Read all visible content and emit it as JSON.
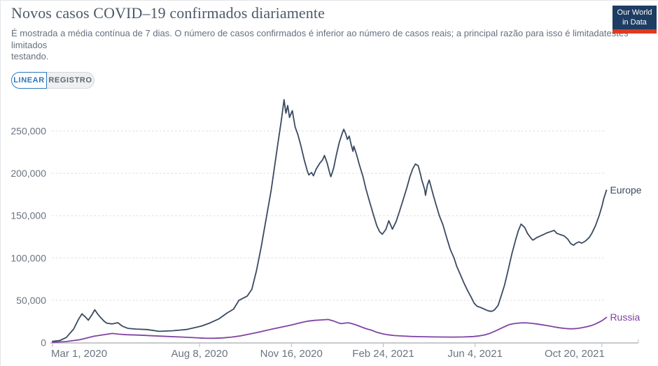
{
  "page": {
    "logo": {
      "line1": "Our World",
      "line2": "in Data"
    },
    "buttons": {
      "linear": "LINEAR",
      "log": "REGISTRO"
    }
  },
  "colors": {
    "accent_blue": "#2d77bd",
    "logo_navy": "#1d3d63",
    "logo_red": "#dc3b22",
    "europe_line": "#394a61",
    "russia_line": "#8143a4",
    "axis_text": "#6b7482",
    "grid": "#dcdee0",
    "axis_line": "#a6a9ad"
  },
  "chart_data": {
    "type": "line",
    "title": "Novos casos COVID–19 confirmados diariamente",
    "subtitle": "É mostrada a média contínua de 7 dias. O número de casos confirmados é inferior ao número de casos reais; a principal razão para isso é limitadatestes\nlimitados\ntestando.",
    "grid": "dashed-horizontal",
    "legend_position": "end-of-line",
    "x_axis": {
      "start_date": "Mar 1, 2020",
      "tick_labels": [
        "Mar 1, 2020",
        "Aug 8, 2020",
        "Nov 16, 2020",
        "Feb 24, 2021",
        "Jun 4, 2021",
        "Oct 20, 2021"
      ],
      "tick_days": [
        0,
        160,
        260,
        360,
        460,
        598
      ],
      "domain_days": [
        0,
        603
      ]
    },
    "y_axis": {
      "ticks": [
        0,
        50000,
        100000,
        150000,
        200000,
        250000
      ],
      "tick_labels": [
        "0",
        "50,000",
        "100,000",
        "150,000",
        "200,000",
        "250,000"
      ],
      "range": [
        0,
        250000
      ]
    },
    "series": [
      {
        "name": "Europe",
        "color": "#394a61",
        "points": [
          [
            0,
            1500
          ],
          [
            8,
            2500
          ],
          [
            15,
            6000
          ],
          [
            23,
            16000
          ],
          [
            28,
            27000
          ],
          [
            32,
            34000
          ],
          [
            36,
            30000
          ],
          [
            39,
            26500
          ],
          [
            43,
            33000
          ],
          [
            46,
            38800
          ],
          [
            49,
            34000
          ],
          [
            52,
            30000
          ],
          [
            56,
            25500
          ],
          [
            59,
            23000
          ],
          [
            65,
            22000
          ],
          [
            71,
            23500
          ],
          [
            76,
            19500
          ],
          [
            82,
            16800
          ],
          [
            91,
            16000
          ],
          [
            103,
            15400
          ],
          [
            116,
            13300
          ],
          [
            131,
            14000
          ],
          [
            146,
            15500
          ],
          [
            162,
            19500
          ],
          [
            171,
            23000
          ],
          [
            181,
            28000
          ],
          [
            190,
            35000
          ],
          [
            197,
            39500
          ],
          [
            203,
            50000
          ],
          [
            212,
            55000
          ],
          [
            217,
            63000
          ],
          [
            222,
            85000
          ],
          [
            227,
            112000
          ],
          [
            232,
            143000
          ],
          [
            238,
            180000
          ],
          [
            245,
            233000
          ],
          [
            249,
            262000
          ],
          [
            252,
            287000
          ],
          [
            254,
            271000
          ],
          [
            256,
            280000
          ],
          [
            258,
            266000
          ],
          [
            261,
            274000
          ],
          [
            264,
            255000
          ],
          [
            267,
            246000
          ],
          [
            270,
            234000
          ],
          [
            274,
            216000
          ],
          [
            277,
            204000
          ],
          [
            279,
            198000
          ],
          [
            282,
            201000
          ],
          [
            284,
            197000
          ],
          [
            287,
            205000
          ],
          [
            291,
            212000
          ],
          [
            294,
            216000
          ],
          [
            296,
            221000
          ],
          [
            299,
            212000
          ],
          [
            302,
            199000
          ],
          [
            303,
            196000
          ],
          [
            306,
            206000
          ],
          [
            309,
            222000
          ],
          [
            312,
            236000
          ],
          [
            315,
            246000
          ],
          [
            317,
            252000
          ],
          [
            319,
            247000
          ],
          [
            321,
            240000
          ],
          [
            323,
            244000
          ],
          [
            325,
            234000
          ],
          [
            327,
            226000
          ],
          [
            328,
            232000
          ],
          [
            331,
            222000
          ],
          [
            334,
            210000
          ],
          [
            338,
            196000
          ],
          [
            341,
            182000
          ],
          [
            345,
            167000
          ],
          [
            349,
            152000
          ],
          [
            353,
            138000
          ],
          [
            356,
            131000
          ],
          [
            359,
            128000
          ],
          [
            363,
            134000
          ],
          [
            366,
            144000
          ],
          [
            368,
            139000
          ],
          [
            370,
            134000
          ],
          [
            374,
            143000
          ],
          [
            378,
            156000
          ],
          [
            382,
            170000
          ],
          [
            386,
            184000
          ],
          [
            389,
            196000
          ],
          [
            392,
            205000
          ],
          [
            395,
            211000
          ],
          [
            398,
            209000
          ],
          [
            400,
            201000
          ],
          [
            402,
            192000
          ],
          [
            405,
            181000
          ],
          [
            406,
            174000
          ],
          [
            408,
            186000
          ],
          [
            410,
            192000
          ],
          [
            412,
            184000
          ],
          [
            415,
            172000
          ],
          [
            418,
            161000
          ],
          [
            421,
            150000
          ],
          [
            425,
            139000
          ],
          [
            429,
            124000
          ],
          [
            433,
            110000
          ],
          [
            437,
            100000
          ],
          [
            440,
            90000
          ],
          [
            444,
            80000
          ],
          [
            448,
            70000
          ],
          [
            452,
            61000
          ],
          [
            456,
            53000
          ],
          [
            459,
            46500
          ],
          [
            462,
            43000
          ],
          [
            466,
            41500
          ],
          [
            469,
            40000
          ],
          [
            472,
            38500
          ],
          [
            475,
            37300
          ],
          [
            478,
            37000
          ],
          [
            481,
            38500
          ],
          [
            485,
            44000
          ],
          [
            488,
            54000
          ],
          [
            492,
            68000
          ],
          [
            496,
            86000
          ],
          [
            500,
            105000
          ],
          [
            504,
            121000
          ],
          [
            507,
            132000
          ],
          [
            510,
            140000
          ],
          [
            514,
            136000
          ],
          [
            517,
            129000
          ],
          [
            521,
            123000
          ],
          [
            523,
            121000
          ],
          [
            527,
            124000
          ],
          [
            531,
            126000
          ],
          [
            535,
            128000
          ],
          [
            538,
            129500
          ],
          [
            542,
            131000
          ],
          [
            546,
            132500
          ],
          [
            549,
            129000
          ],
          [
            553,
            127500
          ],
          [
            557,
            126000
          ],
          [
            561,
            122000
          ],
          [
            564,
            117000
          ],
          [
            567,
            115000
          ],
          [
            570,
            117500
          ],
          [
            573,
            119000
          ],
          [
            576,
            117500
          ],
          [
            580,
            120000
          ],
          [
            584,
            124000
          ],
          [
            587,
            129000
          ],
          [
            591,
            138000
          ],
          [
            595,
            150000
          ],
          [
            598,
            161000
          ],
          [
            600,
            170000
          ],
          [
            603,
            180000
          ]
        ]
      },
      {
        "name": "Russia",
        "color": "#8143a4",
        "points": [
          [
            0,
            300
          ],
          [
            15,
            1200
          ],
          [
            30,
            3500
          ],
          [
            45,
            7500
          ],
          [
            57,
            9500
          ],
          [
            65,
            10800
          ],
          [
            72,
            10000
          ],
          [
            80,
            9300
          ],
          [
            95,
            8800
          ],
          [
            110,
            8000
          ],
          [
            125,
            7300
          ],
          [
            140,
            6600
          ],
          [
            155,
            5800
          ],
          [
            165,
            5200
          ],
          [
            175,
            5100
          ],
          [
            185,
            5500
          ],
          [
            195,
            6500
          ],
          [
            205,
            8000
          ],
          [
            215,
            10200
          ],
          [
            225,
            12500
          ],
          [
            232,
            14300
          ],
          [
            240,
            16200
          ],
          [
            250,
            18500
          ],
          [
            261,
            21000
          ],
          [
            270,
            23500
          ],
          [
            278,
            25300
          ],
          [
            285,
            26200
          ],
          [
            293,
            26800
          ],
          [
            300,
            27300
          ],
          [
            306,
            25500
          ],
          [
            310,
            23800
          ],
          [
            314,
            22400
          ],
          [
            318,
            23000
          ],
          [
            322,
            23400
          ],
          [
            326,
            22400
          ],
          [
            330,
            21000
          ],
          [
            335,
            19000
          ],
          [
            341,
            16500
          ],
          [
            347,
            14800
          ],
          [
            353,
            12200
          ],
          [
            360,
            10200
          ],
          [
            365,
            9200
          ],
          [
            372,
            8300
          ],
          [
            380,
            7800
          ],
          [
            390,
            7300
          ],
          [
            400,
            7000
          ],
          [
            415,
            6700
          ],
          [
            425,
            6600
          ],
          [
            435,
            6500
          ],
          [
            448,
            6700
          ],
          [
            458,
            7200
          ],
          [
            465,
            8000
          ],
          [
            470,
            9000
          ],
          [
            475,
            10500
          ],
          [
            480,
            12700
          ],
          [
            485,
            15200
          ],
          [
            490,
            17800
          ],
          [
            494,
            19800
          ],
          [
            497,
            21200
          ],
          [
            502,
            22400
          ],
          [
            507,
            23000
          ],
          [
            512,
            23400
          ],
          [
            517,
            23200
          ],
          [
            522,
            22700
          ],
          [
            527,
            22000
          ],
          [
            532,
            21200
          ],
          [
            537,
            20300
          ],
          [
            542,
            19400
          ],
          [
            547,
            18400
          ],
          [
            552,
            17500
          ],
          [
            557,
            16800
          ],
          [
            562,
            16300
          ],
          [
            567,
            16300
          ],
          [
            572,
            16800
          ],
          [
            577,
            17700
          ],
          [
            582,
            18900
          ],
          [
            587,
            20300
          ],
          [
            591,
            22000
          ],
          [
            595,
            24200
          ],
          [
            598,
            25800
          ],
          [
            600,
            27400
          ],
          [
            603,
            29800
          ]
        ]
      }
    ]
  }
}
